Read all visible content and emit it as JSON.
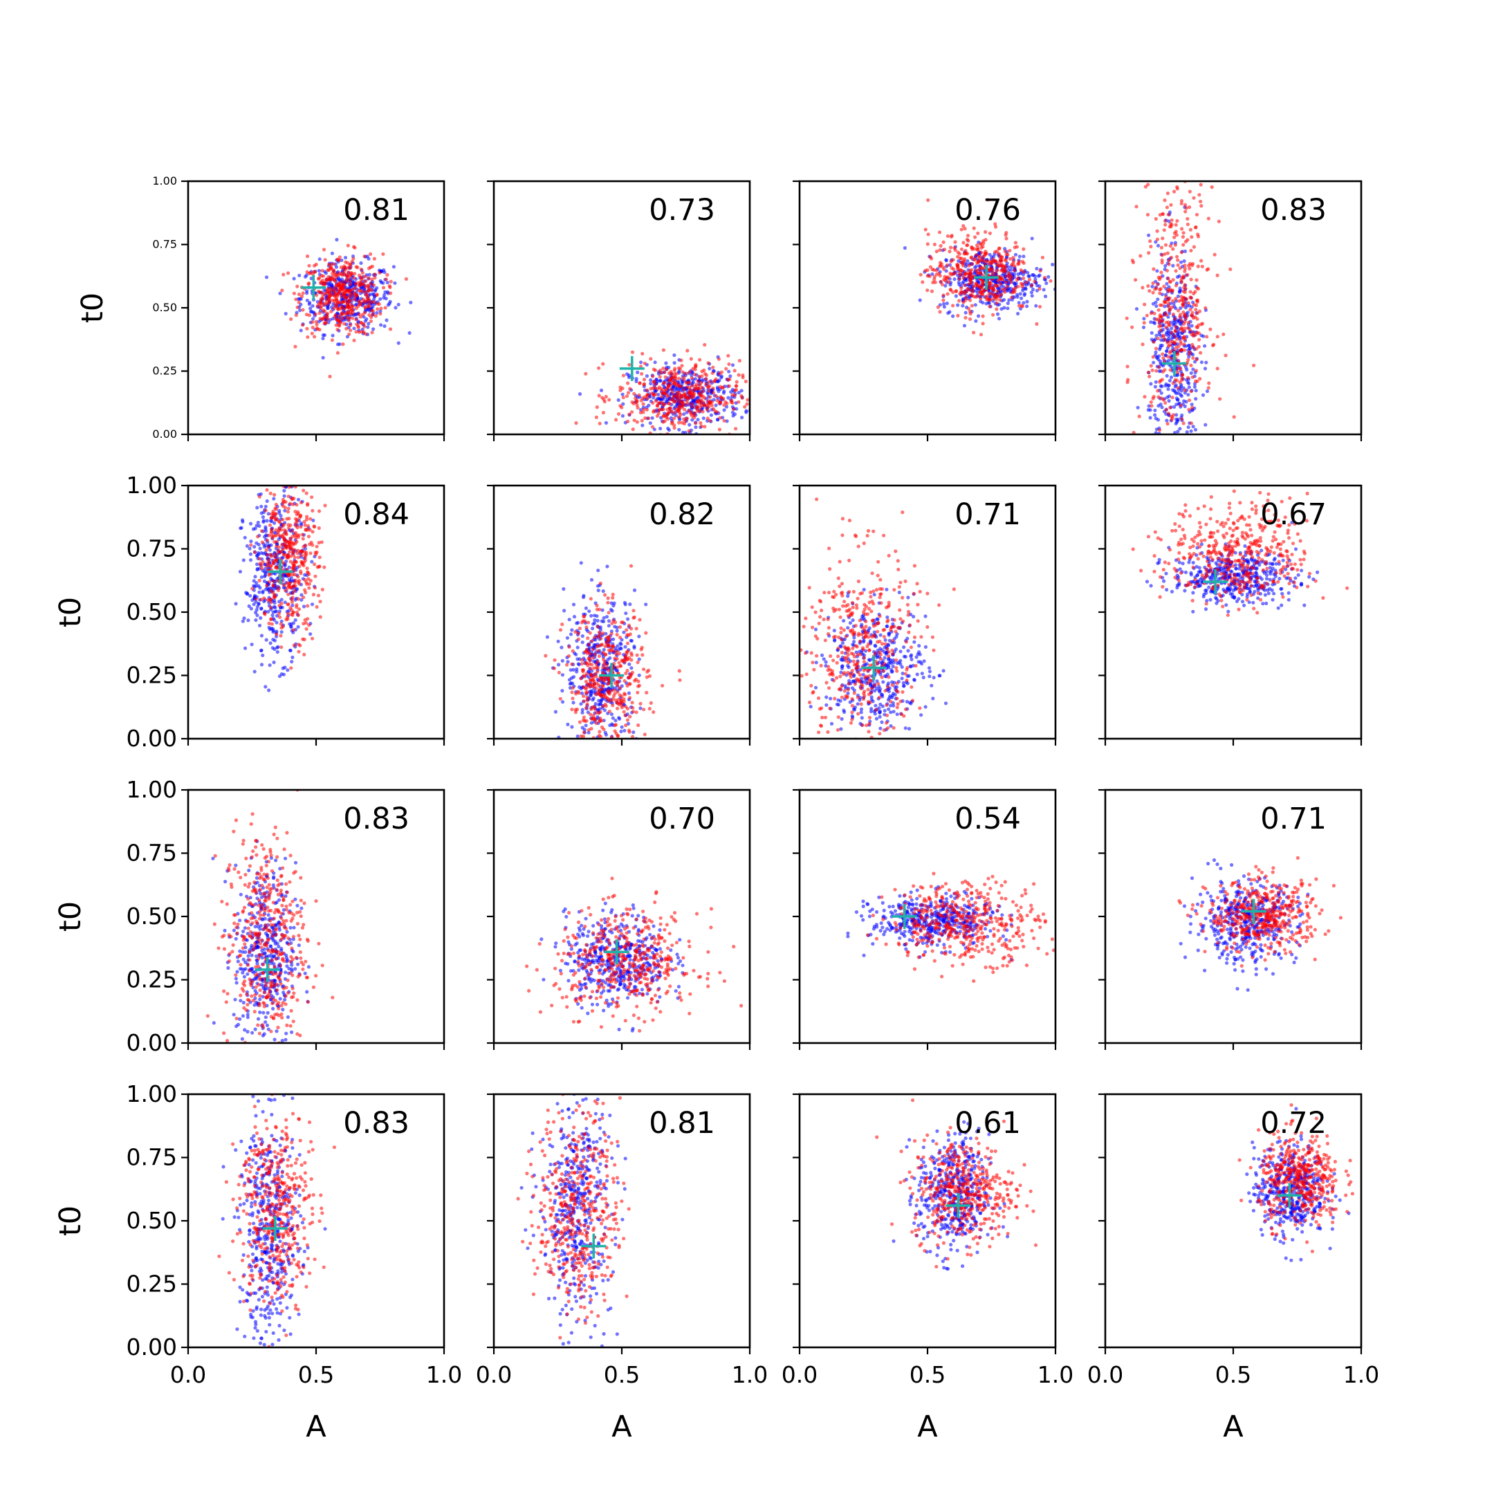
{
  "figure": {
    "xlabel": "A",
    "ylabel": "t0",
    "point_colors": [
      "#0000ff",
      "#ff0000"
    ],
    "marker_color": "#20b2aa"
  },
  "chart_data": [
    {
      "type": "scatter",
      "row": 0,
      "col": 0,
      "corr": "0.81",
      "marker": [
        0.49,
        0.58
      ],
      "xlim": [
        0,
        1
      ],
      "ylim": [
        0,
        1
      ],
      "clusters": [
        {
          "color": "blue",
          "cx": 0.62,
          "cy": 0.54,
          "sx": 0.09,
          "sy": 0.07,
          "n": 420
        },
        {
          "color": "red",
          "cx": 0.6,
          "cy": 0.55,
          "sx": 0.08,
          "sy": 0.08,
          "n": 420
        }
      ]
    },
    {
      "type": "scatter",
      "row": 0,
      "col": 1,
      "corr": "0.73",
      "marker": [
        0.54,
        0.26
      ],
      "xlim": [
        0,
        1
      ],
      "ylim": [
        0,
        1
      ],
      "clusters": [
        {
          "color": "blue",
          "cx": 0.75,
          "cy": 0.15,
          "sx": 0.11,
          "sy": 0.06,
          "n": 420
        },
        {
          "color": "red",
          "cx": 0.72,
          "cy": 0.15,
          "sx": 0.12,
          "sy": 0.07,
          "n": 420
        }
      ]
    },
    {
      "type": "scatter",
      "row": 0,
      "col": 2,
      "corr": "0.76",
      "marker": [
        0.73,
        0.62
      ],
      "xlim": [
        0,
        1
      ],
      "ylim": [
        0,
        1
      ],
      "clusters": [
        {
          "color": "blue",
          "cx": 0.75,
          "cy": 0.61,
          "sx": 0.1,
          "sy": 0.06,
          "n": 420
        },
        {
          "color": "red",
          "cx": 0.7,
          "cy": 0.64,
          "sx": 0.1,
          "sy": 0.08,
          "n": 420
        }
      ]
    },
    {
      "type": "scatter",
      "row": 0,
      "col": 3,
      "corr": "0.83",
      "marker": [
        0.27,
        0.28
      ],
      "xlim": [
        0,
        1
      ],
      "ylim": [
        0,
        1
      ],
      "clusters": [
        {
          "color": "blue",
          "cx": 0.27,
          "cy": 0.3,
          "sx": 0.05,
          "sy": 0.22,
          "n": 420
        },
        {
          "color": "red",
          "cx": 0.28,
          "cy": 0.5,
          "sx": 0.07,
          "sy": 0.25,
          "n": 420
        }
      ]
    },
    {
      "type": "scatter",
      "row": 1,
      "col": 0,
      "corr": "0.84",
      "marker": [
        0.36,
        0.66
      ],
      "xlim": [
        0,
        1
      ],
      "ylim": [
        0,
        1
      ],
      "clusters": [
        {
          "color": "blue",
          "cx": 0.34,
          "cy": 0.64,
          "sx": 0.06,
          "sy": 0.16,
          "n": 420
        },
        {
          "color": "red",
          "cx": 0.39,
          "cy": 0.72,
          "sx": 0.06,
          "sy": 0.15,
          "n": 420
        }
      ]
    },
    {
      "type": "scatter",
      "row": 1,
      "col": 1,
      "corr": "0.82",
      "marker": [
        0.46,
        0.25
      ],
      "xlim": [
        0,
        1
      ],
      "ylim": [
        0,
        1
      ],
      "clusters": [
        {
          "color": "blue",
          "cx": 0.42,
          "cy": 0.27,
          "sx": 0.07,
          "sy": 0.15,
          "n": 420
        },
        {
          "color": "red",
          "cx": 0.44,
          "cy": 0.22,
          "sx": 0.08,
          "sy": 0.14,
          "n": 420
        }
      ]
    },
    {
      "type": "scatter",
      "row": 1,
      "col": 2,
      "corr": "0.71",
      "marker": [
        0.29,
        0.28
      ],
      "xlim": [
        0,
        1
      ],
      "ylim": [
        0,
        1
      ],
      "clusters": [
        {
          "color": "blue",
          "cx": 0.3,
          "cy": 0.28,
          "sx": 0.1,
          "sy": 0.12,
          "n": 420
        },
        {
          "color": "red",
          "cx": 0.24,
          "cy": 0.35,
          "sx": 0.11,
          "sy": 0.2,
          "n": 420
        }
      ]
    },
    {
      "type": "scatter",
      "row": 1,
      "col": 3,
      "corr": "0.67",
      "marker": [
        0.43,
        0.62
      ],
      "xlim": [
        0,
        1
      ],
      "ylim": [
        0,
        1
      ],
      "clusters": [
        {
          "color": "blue",
          "cx": 0.5,
          "cy": 0.64,
          "sx": 0.12,
          "sy": 0.05,
          "n": 420
        },
        {
          "color": "red",
          "cx": 0.52,
          "cy": 0.73,
          "sx": 0.14,
          "sy": 0.1,
          "n": 420
        }
      ]
    },
    {
      "type": "scatter",
      "row": 2,
      "col": 0,
      "corr": "0.83",
      "marker": [
        0.31,
        0.29
      ],
      "xlim": [
        0,
        1
      ],
      "ylim": [
        0,
        1
      ],
      "clusters": [
        {
          "color": "blue",
          "cx": 0.3,
          "cy": 0.35,
          "sx": 0.06,
          "sy": 0.18,
          "n": 420
        },
        {
          "color": "red",
          "cx": 0.3,
          "cy": 0.4,
          "sx": 0.08,
          "sy": 0.22,
          "n": 420
        }
      ]
    },
    {
      "type": "scatter",
      "row": 2,
      "col": 1,
      "corr": "0.70",
      "marker": [
        0.48,
        0.36
      ],
      "xlim": [
        0,
        1
      ],
      "ylim": [
        0,
        1
      ],
      "clusters": [
        {
          "color": "blue",
          "cx": 0.48,
          "cy": 0.33,
          "sx": 0.1,
          "sy": 0.09,
          "n": 420
        },
        {
          "color": "red",
          "cx": 0.52,
          "cy": 0.32,
          "sx": 0.14,
          "sy": 0.1,
          "n": 420
        }
      ]
    },
    {
      "type": "scatter",
      "row": 2,
      "col": 2,
      "corr": "0.54",
      "marker": [
        0.41,
        0.5
      ],
      "xlim": [
        0,
        1
      ],
      "ylim": [
        0,
        1
      ],
      "clusters": [
        {
          "color": "blue",
          "cx": 0.52,
          "cy": 0.48,
          "sx": 0.12,
          "sy": 0.05,
          "n": 420
        },
        {
          "color": "red",
          "cx": 0.65,
          "cy": 0.48,
          "sx": 0.15,
          "sy": 0.08,
          "n": 420
        }
      ]
    },
    {
      "type": "scatter",
      "row": 2,
      "col": 3,
      "corr": "0.71",
      "marker": [
        0.58,
        0.52
      ],
      "xlim": [
        0,
        1
      ],
      "ylim": [
        0,
        1
      ],
      "clusters": [
        {
          "color": "blue",
          "cx": 0.55,
          "cy": 0.48,
          "sx": 0.1,
          "sy": 0.08,
          "n": 420
        },
        {
          "color": "red",
          "cx": 0.62,
          "cy": 0.5,
          "sx": 0.11,
          "sy": 0.07,
          "n": 420
        }
      ]
    },
    {
      "type": "scatter",
      "row": 3,
      "col": 0,
      "corr": "0.83",
      "marker": [
        0.34,
        0.47
      ],
      "xlim": [
        0,
        1
      ],
      "ylim": [
        0,
        1
      ],
      "clusters": [
        {
          "color": "blue",
          "cx": 0.32,
          "cy": 0.45,
          "sx": 0.06,
          "sy": 0.22,
          "n": 420
        },
        {
          "color": "red",
          "cx": 0.34,
          "cy": 0.55,
          "sx": 0.07,
          "sy": 0.2,
          "n": 420
        }
      ]
    },
    {
      "type": "scatter",
      "row": 3,
      "col": 1,
      "corr": "0.81",
      "marker": [
        0.39,
        0.4
      ],
      "xlim": [
        0,
        1
      ],
      "ylim": [
        0,
        1
      ],
      "clusters": [
        {
          "color": "blue",
          "cx": 0.32,
          "cy": 0.55,
          "sx": 0.07,
          "sy": 0.22,
          "n": 420
        },
        {
          "color": "red",
          "cx": 0.33,
          "cy": 0.55,
          "sx": 0.08,
          "sy": 0.2,
          "n": 420
        }
      ]
    },
    {
      "type": "scatter",
      "row": 3,
      "col": 2,
      "corr": "0.61",
      "marker": [
        0.62,
        0.56
      ],
      "xlim": [
        0,
        1
      ],
      "ylim": [
        0,
        1
      ],
      "clusters": [
        {
          "color": "blue",
          "cx": 0.6,
          "cy": 0.6,
          "sx": 0.07,
          "sy": 0.12,
          "n": 420
        },
        {
          "color": "red",
          "cx": 0.64,
          "cy": 0.62,
          "sx": 0.1,
          "sy": 0.1,
          "n": 420
        }
      ]
    },
    {
      "type": "scatter",
      "row": 3,
      "col": 3,
      "corr": "0.72",
      "marker": [
        0.72,
        0.6
      ],
      "xlim": [
        0,
        1
      ],
      "ylim": [
        0,
        1
      ],
      "clusters": [
        {
          "color": "blue",
          "cx": 0.72,
          "cy": 0.62,
          "sx": 0.07,
          "sy": 0.09,
          "n": 420
        },
        {
          "color": "red",
          "cx": 0.76,
          "cy": 0.66,
          "sx": 0.08,
          "sy": 0.09,
          "n": 420
        }
      ]
    }
  ]
}
